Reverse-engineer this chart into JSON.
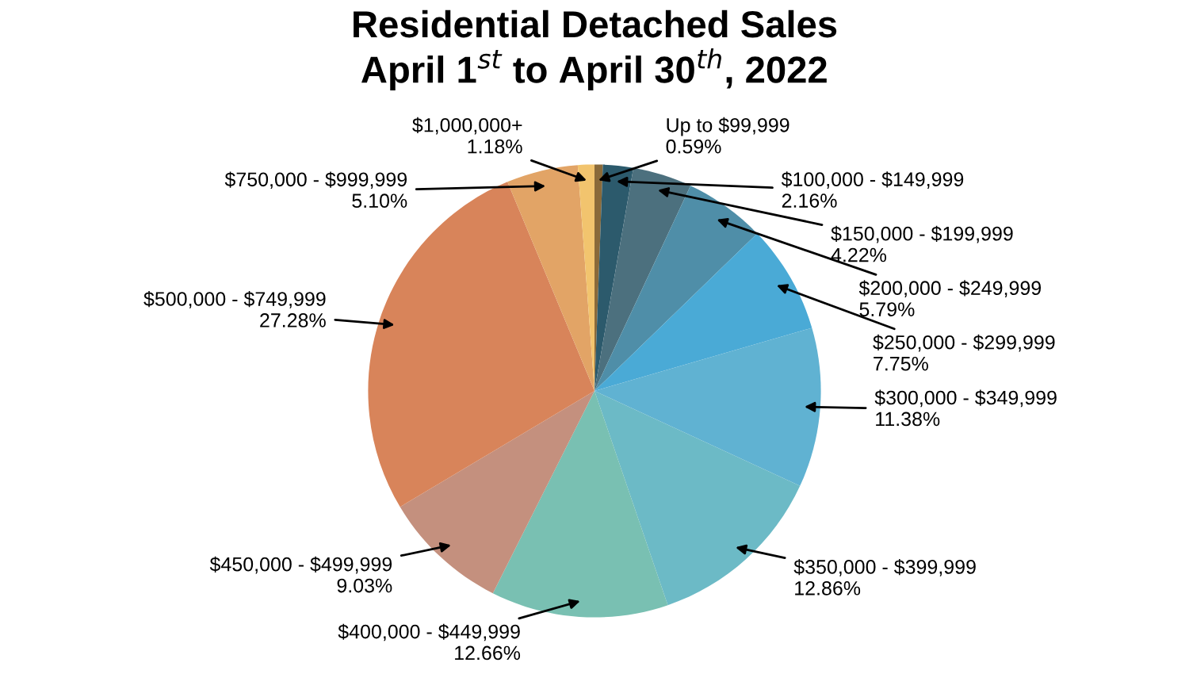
{
  "chart_data": {
    "type": "pie",
    "title": "Residential Detached Sales\nApril 1$^{st}$ to April 30$^{th}$, 2022",
    "categories": [
      "Up to $99,999",
      "$100,000 - $149,999",
      "$150,000 - $199,999",
      "$200,000 - $249,999",
      "$250,000 - $299,999",
      "$300,000 - $349,999",
      "$350,000 - $399,999",
      "$400,000 - $449,999",
      "$450,000 - $499,999",
      "$500,000 - $749,999",
      "$750,000 - $999,999",
      "$1,000,000+"
    ],
    "values": [
      0.59,
      2.16,
      4.22,
      5.79,
      7.75,
      11.38,
      12.86,
      12.66,
      9.03,
      27.28,
      5.1,
      1.18
    ],
    "value_labels": [
      "0.59%",
      "2.16%",
      "4.22%",
      "5.79%",
      "7.75%",
      "11.38%",
      "12.86%",
      "12.66%",
      "9.03%",
      "27.28%",
      "5.10%",
      "1.18%"
    ],
    "colors": [
      "#8a6a3a",
      "#2c5a6c",
      "#4c707e",
      "#4f8ea8",
      "#4aaad6",
      "#60b2d2",
      "#6cbac6",
      "#79c0b2",
      "#c4907e",
      "#d8845a",
      "#e2a466",
      "#f2c46e"
    ]
  }
}
